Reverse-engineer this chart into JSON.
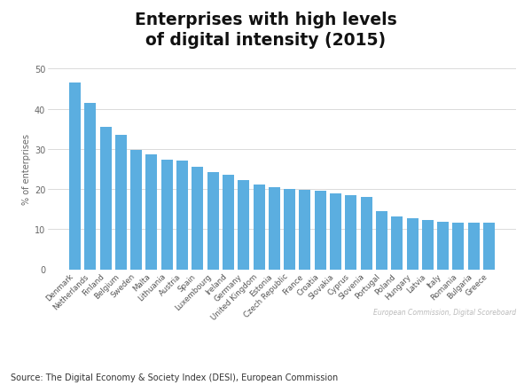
{
  "title": "Enterprises with high levels\nof digital intensity (2015)",
  "ylabel": "% of enterprises",
  "source_text": "Source: The Digital Economy & Society Index (DESI), European Commission",
  "watermark": "European Commission, Digital Scoreboard",
  "bar_color": "#5BAEE0",
  "background_color": "#ffffff",
  "ylim": [
    0,
    50
  ],
  "yticks": [
    0,
    10,
    20,
    30,
    40,
    50
  ],
  "categories": [
    "Denmark",
    "Netherlands",
    "Finland",
    "Belgium",
    "Sweden",
    "Malta",
    "Lithuania",
    "Austria",
    "Spain",
    "Luxembourg",
    "Ireland",
    "Germany",
    "United Kingdom",
    "Estonia",
    "Czech Republic",
    "France",
    "Croatia",
    "Slovakia",
    "Cyprus",
    "Slovenia",
    "Portugal",
    "Poland",
    "Hungary",
    "Latvia",
    "Italy",
    "Romania",
    "Bulgaria",
    "Greece"
  ],
  "values": [
    46.5,
    41.5,
    35.5,
    33.5,
    29.8,
    28.7,
    27.3,
    27.0,
    25.5,
    24.2,
    23.5,
    22.3,
    21.0,
    20.5,
    20.0,
    19.8,
    19.5,
    18.8,
    18.5,
    18.0,
    14.5,
    13.2,
    12.7,
    12.2,
    11.8,
    11.5,
    11.5,
    11.5
  ]
}
